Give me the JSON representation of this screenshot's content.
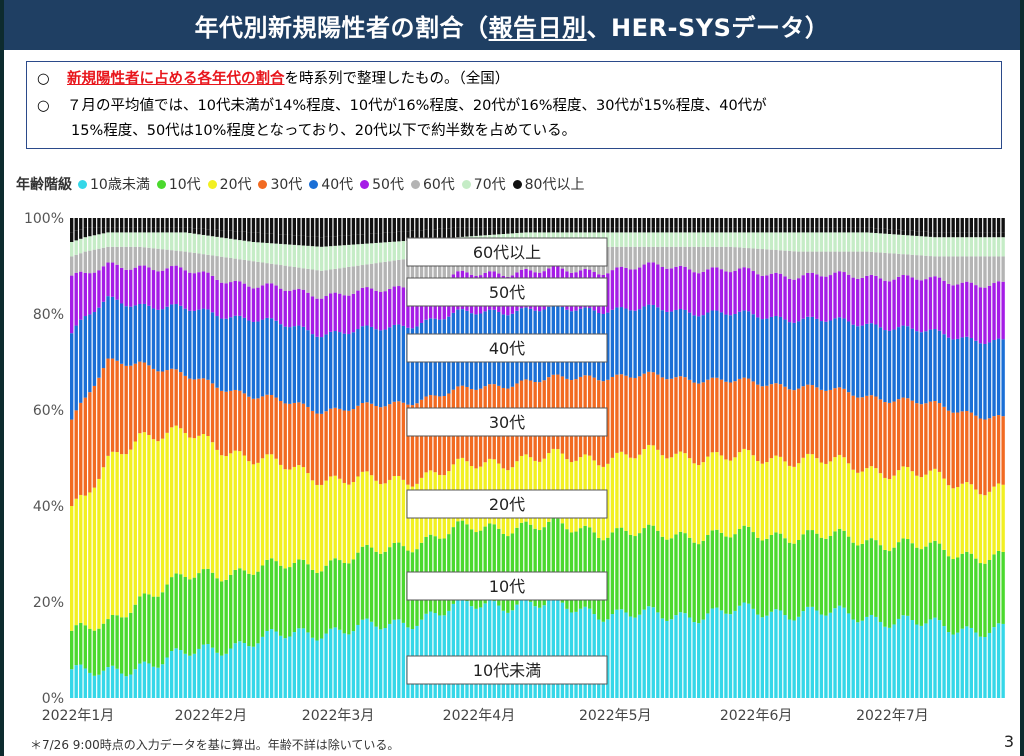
{
  "slide": {
    "title_pre": "年代別新規陽性者の割合（",
    "title_underlined": "報告日別",
    "title_post": "、HER-SYSデータ）",
    "summary": {
      "line1_bullet": "○",
      "line1_highlight": "新規陽性者に占める各年代の割合",
      "line1_rest": "を時系列で整理したもの。（全国）",
      "line2_bullet": "○",
      "line2_text": "７月の平均値では、10代未満が14%程度、10代が16%程度、20代が16%程度、30代が15%程度、40代が",
      "line3_text": "15%程度、50代は10%程度となっており、20代以下で約半数を占めている。"
    },
    "legend_title": "年齢階級",
    "footnote": "＊7/26 9:00時点の入力データを基に算出。年齢不詳は除いている。",
    "page_number": "3"
  },
  "chart_data": {
    "type": "bar",
    "stacked": true,
    "normalized": true,
    "ylim": [
      0,
      100
    ],
    "ytick_labels": [
      "0%",
      "20%",
      "40%",
      "60%",
      "80%",
      "100%"
    ],
    "xtick_labels": [
      "2022年1月",
      "2022年2月",
      "2022年3月",
      "2022年4月",
      "2022年5月",
      "2022年6月",
      "2022年7月"
    ],
    "bar_count": 206,
    "series": [
      {
        "name": "10歳未満",
        "color": "#35d7e8",
        "band_label": "10代未満"
      },
      {
        "name": "10代",
        "color": "#4bd92e",
        "band_label": "10代"
      },
      {
        "name": "20代",
        "color": "#f2f021",
        "band_label": "20代"
      },
      {
        "name": "30代",
        "color": "#f26a21",
        "band_label": "30代"
      },
      {
        "name": "40代",
        "color": "#1a6fd6",
        "band_label": "40代"
      },
      {
        "name": "50代",
        "color": "#a51ce6",
        "band_label": "50代"
      },
      {
        "name": "60代",
        "color": "#b4b4b4",
        "band_label": ""
      },
      {
        "name": "70代",
        "color": "#c5ecc6",
        "band_label": ""
      },
      {
        "name": "80代以上",
        "color": "#111111",
        "band_label": ""
      }
    ],
    "top_band_label": "60代以上",
    "cumulative_keyframes": [
      {
        "x": 0,
        "c": [
          6,
          14,
          40,
          58,
          76,
          88,
          92,
          95,
          97
        ]
      },
      {
        "x": 3,
        "c": [
          5,
          14,
          41,
          62,
          79,
          88,
          93,
          96,
          98
        ]
      },
      {
        "x": 8,
        "c": [
          5,
          15,
          49,
          70,
          83,
          90,
          94,
          97,
          98
        ]
      },
      {
        "x": 15,
        "c": [
          7,
          21,
          55,
          70,
          82,
          90,
          94,
          97,
          98
        ]
      },
      {
        "x": 25,
        "c": [
          9,
          25,
          55,
          67,
          81,
          89,
          93,
          97,
          98
        ]
      },
      {
        "x": 40,
        "c": [
          12,
          27,
          50,
          63,
          79,
          86,
          91,
          95,
          97
        ]
      },
      {
        "x": 55,
        "c": [
          14,
          28,
          46,
          60,
          76,
          84,
          89,
          94,
          96
        ]
      },
      {
        "x": 70,
        "c": [
          15,
          31,
          45,
          61,
          77,
          85,
          91,
          95,
          97
        ]
      },
      {
        "x": 85,
        "c": [
          19,
          35,
          48,
          64,
          80,
          88,
          93,
          96,
          98
        ]
      },
      {
        "x": 100,
        "c": [
          20,
          36,
          50,
          66,
          81,
          89,
          94,
          97,
          98
        ]
      },
      {
        "x": 115,
        "c": [
          18,
          35,
          50,
          67,
          81,
          89,
          94,
          97,
          98
        ]
      },
      {
        "x": 130,
        "c": [
          17,
          34,
          51,
          67,
          81,
          90,
          94,
          97,
          98
        ]
      },
      {
        "x": 145,
        "c": [
          18,
          34,
          50,
          66,
          80,
          89,
          94,
          97,
          98
        ]
      },
      {
        "x": 160,
        "c": [
          18,
          34,
          50,
          65,
          79,
          88,
          93,
          97,
          98
        ]
      },
      {
        "x": 175,
        "c": [
          17,
          33,
          48,
          63,
          78,
          88,
          93,
          97,
          98
        ]
      },
      {
        "x": 190,
        "c": [
          15,
          31,
          46,
          61,
          76,
          87,
          92,
          96,
          97
        ]
      },
      {
        "x": 205,
        "c": [
          14,
          29,
          43,
          58,
          74,
          86,
          92,
          96,
          97
        ]
      }
    ]
  }
}
